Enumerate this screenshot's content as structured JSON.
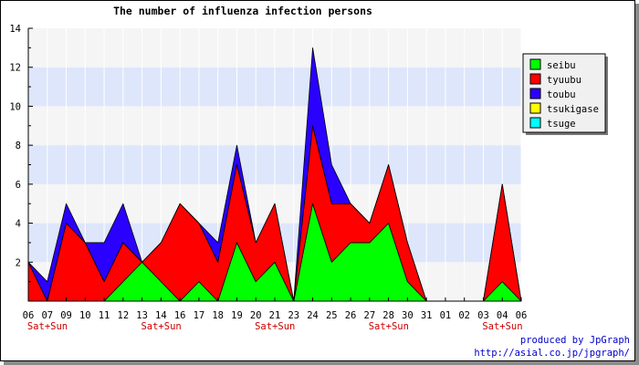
{
  "credits": {
    "line1": "produced by JpGraph",
    "line2": "http://asial.co.jp/jpgraph/"
  },
  "chart_data": {
    "type": "area",
    "stacked": true,
    "title": "The number of influenza infection persons",
    "xlabel": "",
    "ylabel": "",
    "ylim": [
      0,
      14
    ],
    "yticks": [
      2,
      4,
      6,
      8,
      10,
      12,
      14
    ],
    "y_bands": "alternating light blue / light gray every 2 units",
    "grid": "vertical lines at each category",
    "legend_position": "top-right",
    "categories": [
      "06",
      "07",
      "09",
      "10",
      "11",
      "12",
      "13",
      "14",
      "16",
      "17",
      "18",
      "19",
      "20",
      "21",
      "23",
      "24",
      "25",
      "26",
      "27",
      "28",
      "30",
      "31",
      "01",
      "02",
      "03",
      "04",
      "06"
    ],
    "weekend_labels": [
      {
        "category_index": 0,
        "label": "Sat+Sun"
      },
      {
        "category_index": 6,
        "label": "Sat+Sun"
      },
      {
        "category_index": 12,
        "label": "Sat+Sun"
      },
      {
        "category_index": 18,
        "label": "Sat+Sun"
      },
      {
        "category_index": 24,
        "label": "Sat+Sun"
      }
    ],
    "series": [
      {
        "name": "seibu",
        "color": "#00ff00",
        "values": [
          0,
          0,
          0,
          0,
          0,
          1,
          2,
          1,
          0,
          1,
          0,
          3,
          1,
          2,
          0,
          5,
          2,
          3,
          3,
          4,
          1,
          0,
          0,
          0,
          0,
          1,
          0
        ]
      },
      {
        "name": "tyuubu",
        "color": "#ff0000",
        "values": [
          2,
          0,
          4,
          3,
          1,
          2,
          0,
          2,
          5,
          3,
          2,
          4,
          2,
          3,
          0,
          4,
          3,
          2,
          1,
          3,
          2,
          0,
          0,
          0,
          0,
          5,
          0
        ]
      },
      {
        "name": "toubu",
        "color": "#2a00ff",
        "values": [
          0,
          1,
          1,
          0,
          2,
          2,
          0,
          0,
          0,
          0,
          1,
          1,
          0,
          0,
          0,
          4,
          2,
          0,
          0,
          0,
          0,
          0,
          0,
          0,
          0,
          0,
          0
        ]
      },
      {
        "name": "tsukigase",
        "color": "#ffff00",
        "values": [
          0,
          0,
          0,
          0,
          0,
          0,
          0,
          0,
          0,
          0,
          0,
          0,
          0,
          0,
          0,
          0,
          0,
          0,
          0,
          0,
          0,
          0,
          0,
          0,
          0,
          0,
          0
        ]
      },
      {
        "name": "tsuge",
        "color": "#00ffff",
        "values": [
          0,
          0,
          0,
          0,
          0,
          0,
          0,
          0,
          0,
          0,
          0,
          0,
          0,
          0,
          0,
          0,
          0,
          0,
          0,
          0,
          0,
          0,
          0,
          0,
          0,
          0,
          0
        ]
      }
    ]
  }
}
